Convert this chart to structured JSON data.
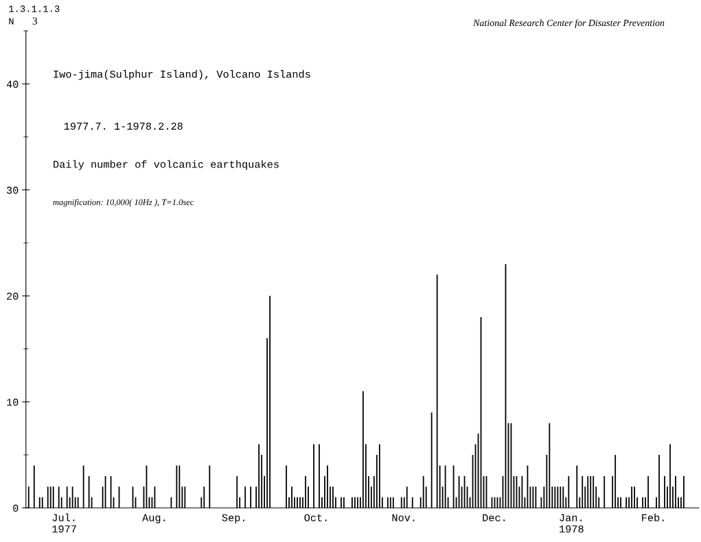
{
  "chart_data": {
    "type": "bar",
    "title": "Iwo-jima(Sulphur Island), Volcano Islands",
    "subtitle": "1977.7. 1-1978.2.28",
    "ylabel": "N",
    "annotations": [
      "Daily number of volcanic earthquakes",
      "magnification: 10,000( 10Hz ), T=1.0sec",
      "National Research Center for Disaster Prevention",
      "1.3.1.1.3",
      "3"
    ],
    "categories": [
      null,
      null,
      null,
      null,
      null,
      null,
      null,
      null,
      null,
      null,
      null,
      null,
      null,
      "Jul.\n1977",
      null,
      null,
      null,
      null,
      null,
      null,
      null,
      null,
      null,
      null,
      null,
      null,
      null,
      null,
      null,
      null,
      null,
      null,
      null,
      null,
      null,
      null,
      null,
      null,
      null,
      null,
      null,
      null,
      null,
      null,
      null,
      null,
      "Aug.",
      null,
      null,
      null,
      null,
      null,
      null,
      null,
      null,
      null,
      null,
      null,
      null,
      null,
      null,
      null,
      null,
      null,
      null,
      null,
      null,
      null,
      null,
      null,
      null,
      null,
      null,
      null,
      null,
      "Sep.",
      null,
      null,
      null,
      null,
      null,
      null,
      null,
      null,
      null,
      null,
      null,
      null,
      null,
      null,
      null,
      null,
      null,
      null,
      null,
      null,
      null,
      null,
      null,
      null,
      null,
      null,
      null,
      null,
      null,
      "Oct.",
      null,
      null,
      null,
      null,
      null,
      null,
      null,
      null,
      null,
      null,
      null,
      null,
      null,
      null,
      null,
      null,
      null,
      null,
      null,
      null,
      null,
      null,
      null,
      null,
      null,
      null,
      null,
      null,
      null,
      null,
      null,
      "Nov.",
      null,
      null,
      null,
      null,
      null,
      null,
      null,
      null,
      null,
      null,
      null,
      null,
      null,
      null,
      null,
      null,
      null,
      null,
      null,
      null,
      null,
      null,
      null,
      null,
      null,
      null,
      null,
      null,
      null,
      null,
      null,
      null,
      "Dec.",
      null,
      null,
      null,
      null,
      null,
      null,
      null,
      null,
      null,
      null,
      null,
      null,
      null,
      null,
      null,
      null,
      null,
      null,
      null,
      null,
      null,
      null,
      null,
      null,
      null,
      null,
      null,
      "Jan.\n1978",
      null,
      null,
      null,
      null,
      null,
      null,
      null,
      null,
      null,
      null,
      null,
      null,
      null,
      null,
      null,
      null,
      null,
      null,
      null,
      null,
      null,
      null,
      null,
      null,
      null,
      null,
      null,
      null,
      null,
      "Feb.",
      null,
      null,
      null,
      null,
      null,
      null,
      null,
      null,
      null,
      null,
      null,
      null,
      null,
      null
    ],
    "values": [
      2,
      0,
      4,
      0,
      1,
      1,
      0,
      2,
      2,
      2,
      0,
      2,
      1,
      0,
      2,
      1,
      2,
      1,
      1,
      0,
      4,
      0,
      3,
      1,
      0,
      0,
      0,
      2,
      3,
      0,
      3,
      1,
      0,
      2,
      0,
      0,
      0,
      0,
      2,
      1,
      0,
      0,
      2,
      4,
      1,
      1,
      2,
      0,
      0,
      0,
      0,
      0,
      1,
      0,
      4,
      4,
      2,
      2,
      0,
      0,
      0,
      0,
      0,
      1,
      2,
      0,
      4,
      0,
      0,
      0,
      0,
      0,
      0,
      0,
      0,
      0,
      3,
      1,
      0,
      2,
      0,
      2,
      0,
      2,
      6,
      5,
      3,
      16,
      20,
      0,
      0,
      0,
      0,
      0,
      4,
      1,
      2,
      1,
      1,
      1,
      1,
      3,
      2,
      0,
      6,
      0,
      6,
      1,
      3,
      4,
      2,
      2,
      1,
      0,
      1,
      1,
      0,
      0,
      1,
      1,
      1,
      1,
      11,
      6,
      3,
      2,
      3,
      5,
      6,
      1,
      0,
      1,
      1,
      1,
      0,
      0,
      1,
      1,
      2,
      0,
      1,
      0,
      0,
      1,
      3,
      2,
      0,
      9,
      0,
      22,
      4,
      2,
      4,
      1,
      0,
      4,
      1,
      3,
      2,
      3,
      2,
      1,
      5,
      6,
      7,
      18,
      3,
      3,
      0,
      1,
      1,
      1,
      1,
      3,
      23,
      8,
      8,
      3,
      3,
      2,
      3,
      1,
      4,
      2,
      2,
      2,
      0,
      1,
      2,
      5,
      8,
      2,
      2,
      2,
      2,
      2,
      1,
      3,
      0,
      0,
      4,
      1,
      3,
      2,
      3,
      3,
      3,
      2,
      1,
      0,
      3,
      0,
      0,
      3,
      5,
      1,
      1,
      0,
      1,
      1,
      2,
      2,
      1,
      0,
      1,
      1,
      3,
      0,
      0,
      1,
      5,
      0,
      3,
      2,
      6,
      2,
      3,
      1,
      1,
      3,
      0,
      0,
      0
    ],
    "color": "#000000",
    "ylim": [
      0,
      45
    ],
    "yticks": [
      0,
      {
        "value": 5,
        "label": null
      },
      10,
      {
        "value": 15,
        "label": null
      },
      20,
      {
        "value": 25,
        "label": null
      },
      30,
      {
        "value": 35,
        "label": null
      },
      40,
      {
        "value": 45,
        "label": null
      }
    ],
    "grid": false,
    "legend": false
  }
}
